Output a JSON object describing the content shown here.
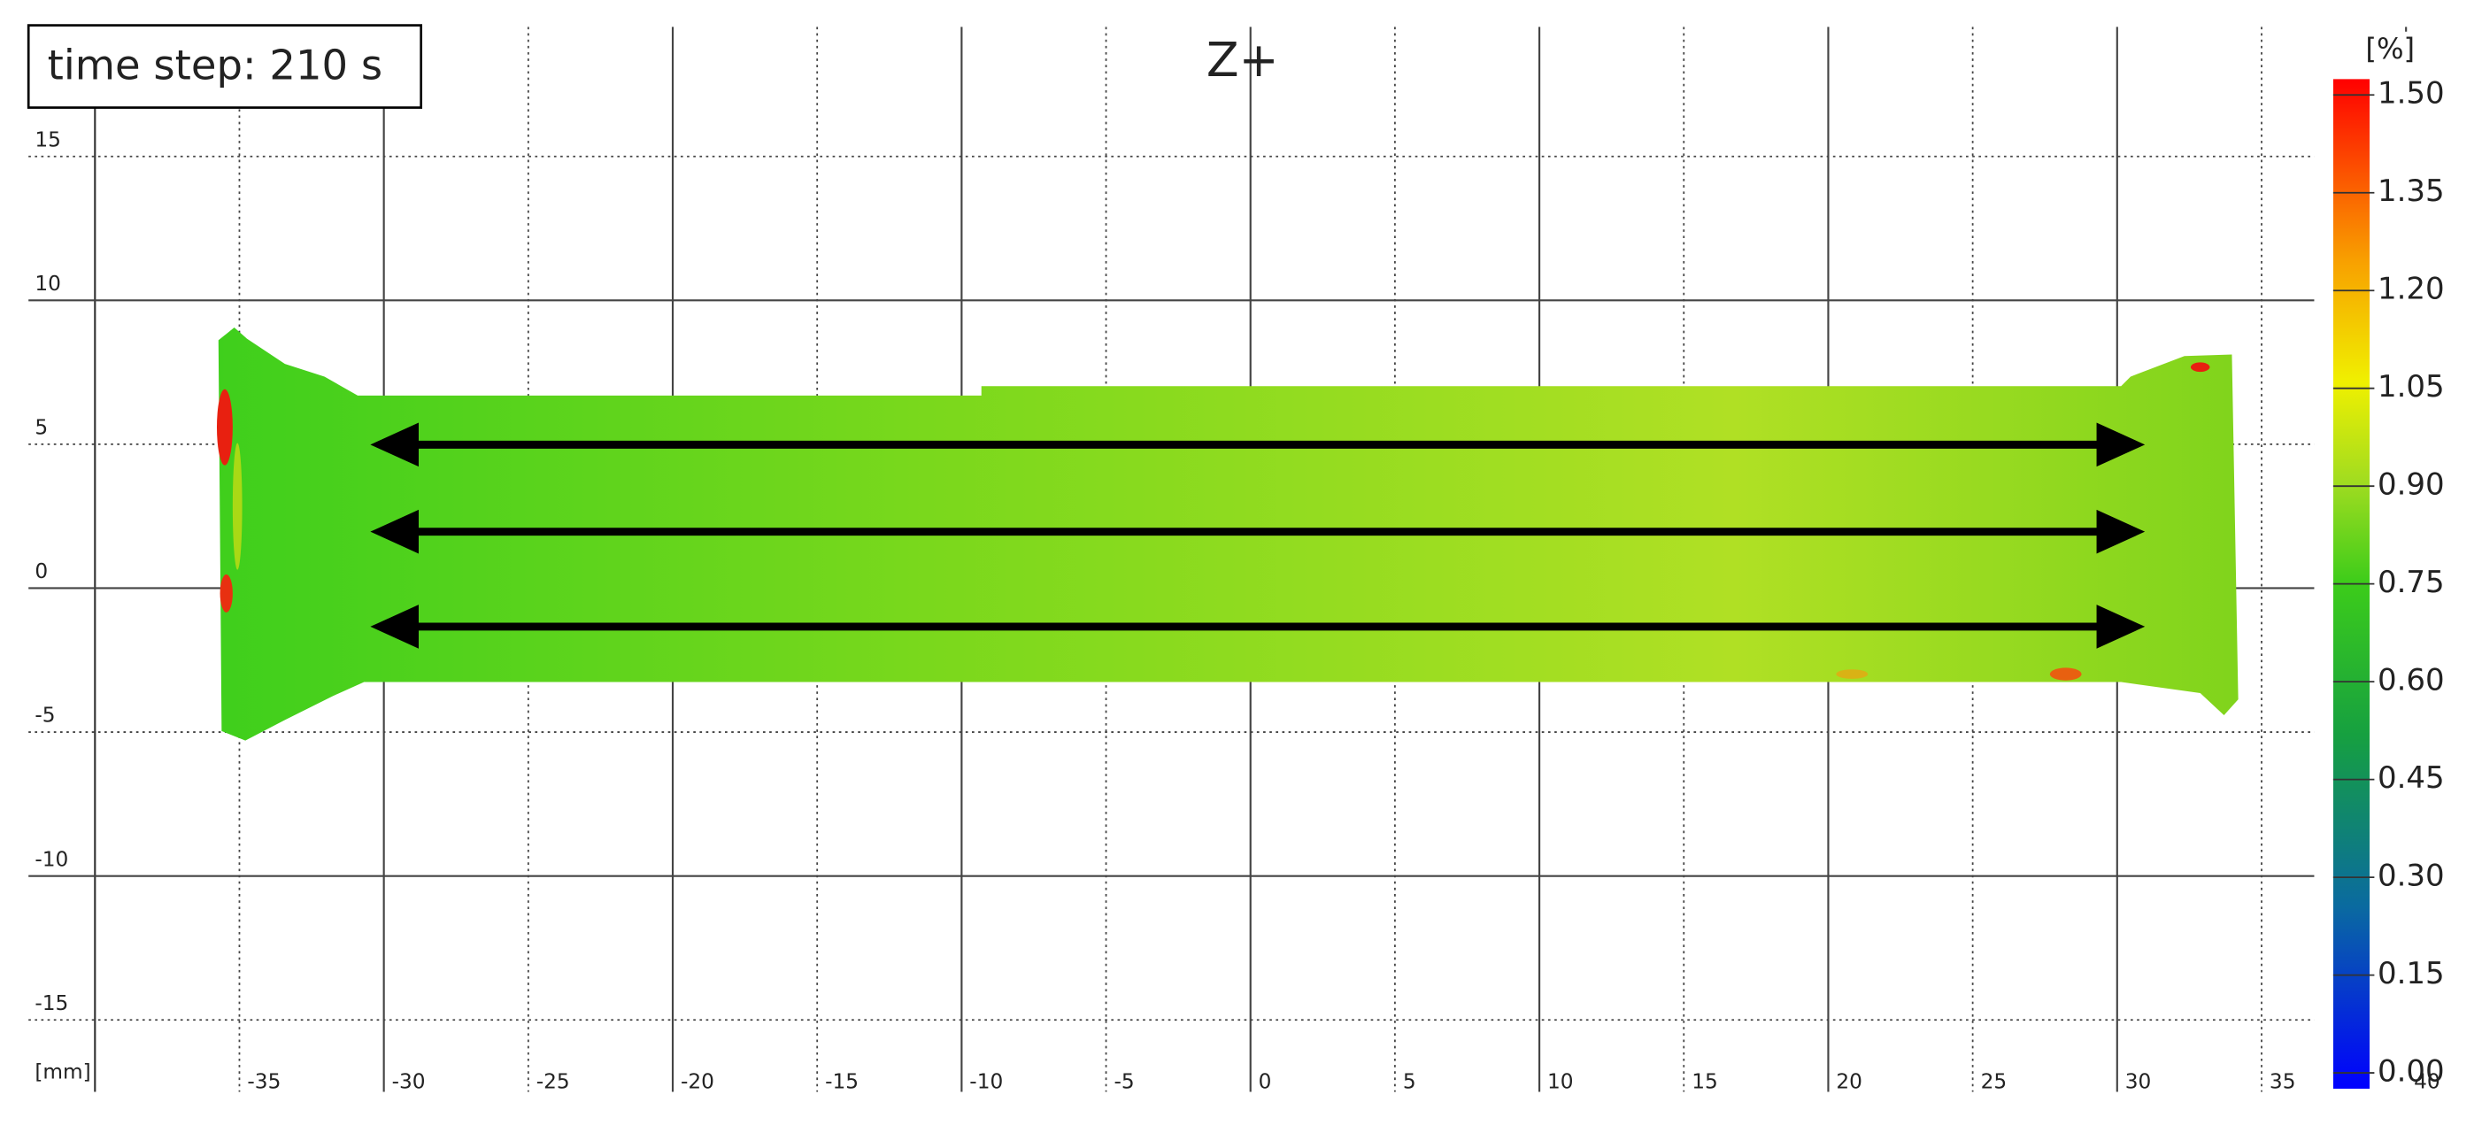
{
  "chart_data": {
    "type": "contour",
    "title": "Z+",
    "annotation": "time step: 210 s",
    "x_unit": "[mm]",
    "xlim": [
      -40,
      40
    ],
    "xticks": [
      -35,
      -30,
      -25,
      -20,
      -15,
      -10,
      -5,
      0,
      5,
      10,
      15,
      20,
      25,
      30,
      35,
      40
    ],
    "ylim": [
      -17.5,
      19.5
    ],
    "yticks": [
      -15,
      -10,
      -5,
      0,
      5,
      10,
      15
    ],
    "grid": true,
    "colorbar": {
      "label": "[%]",
      "lim": [
        0,
        1.5
      ],
      "ticks": [
        {
          "value": 0,
          "label": "0.00"
        },
        {
          "value": 0.15,
          "label": "0.15"
        },
        {
          "value": 0.3,
          "label": "0.30"
        },
        {
          "value": 0.45,
          "label": "0.45"
        },
        {
          "value": 0.6,
          "label": "0.60"
        },
        {
          "value": 0.75,
          "label": "0.75"
        },
        {
          "value": 0.9,
          "label": "0.90"
        },
        {
          "value": 1.05,
          "label": "1.05"
        },
        {
          "value": 1.2,
          "label": "1.20"
        },
        {
          "value": 1.35,
          "label": "1.35"
        },
        {
          "value": 1.5,
          "label": "1.50"
        }
      ]
    }
  }
}
